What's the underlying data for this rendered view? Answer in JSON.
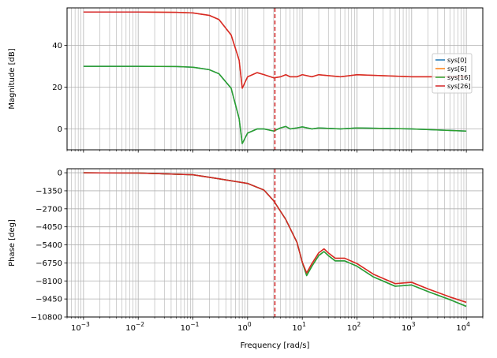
{
  "chart_data": [
    {
      "type": "line",
      "panel": "magnitude",
      "title": "",
      "xlabel": "",
      "ylabel": "Magnitude [dB]",
      "xscale": "log",
      "xlim": [
        0.0005,
        20000
      ],
      "ylim": [
        -10,
        58
      ],
      "yticks": [
        0,
        20,
        40
      ],
      "grid": true,
      "legend_placement": "right",
      "vline_x": 3.16,
      "series": [
        {
          "name": "sys[0]",
          "color": "#1f77b4",
          "x": [
            0.001,
            0.01,
            0.05,
            0.1,
            0.2,
            0.3,
            0.5,
            0.7,
            0.8,
            1.0,
            1.5,
            2.0,
            3.0,
            4.0,
            5.0,
            6.0,
            8.0,
            10.0,
            15.0,
            20.0,
            50.0,
            100.0,
            1000.0,
            10000.0
          ],
          "values": [
            30,
            30,
            29.9,
            29.6,
            28.4,
            26.4,
            19.5,
            5.0,
            -7.0,
            -2.0,
            0.0,
            0.0,
            -1.0,
            0.5,
            1.2,
            0.0,
            0.5,
            1.0,
            0.0,
            0.5,
            0.0,
            0.5,
            0.0,
            -1.0
          ]
        },
        {
          "name": "sys[6]",
          "color": "#ff7f0e",
          "x": [
            0.001,
            0.01,
            0.05,
            0.1,
            0.2,
            0.3,
            0.5,
            0.7,
            0.8,
            1.0,
            1.5,
            2.0,
            3.0,
            4.0,
            5.0,
            6.0,
            8.0,
            10.0,
            15.0,
            20.0,
            50.0,
            100.0,
            1000.0,
            10000.0
          ],
          "values": [
            56,
            56,
            55.9,
            55.6,
            54.4,
            52.4,
            45.0,
            33.0,
            19.5,
            25.0,
            27.0,
            26.0,
            24.5,
            25.0,
            26.0,
            25.0,
            25.0,
            26.0,
            25.0,
            26.0,
            25.0,
            26.0,
            25.0,
            25.0
          ]
        },
        {
          "name": "sys[16]",
          "color": "#2ca02c",
          "x": [
            0.001,
            0.01,
            0.05,
            0.1,
            0.2,
            0.3,
            0.5,
            0.7,
            0.8,
            1.0,
            1.5,
            2.0,
            3.0,
            4.0,
            5.0,
            6.0,
            8.0,
            10.0,
            15.0,
            20.0,
            50.0,
            100.0,
            1000.0,
            10000.0
          ],
          "values": [
            30,
            30,
            29.9,
            29.6,
            28.4,
            26.4,
            19.5,
            5.0,
            -7.0,
            -2.0,
            0.0,
            0.0,
            -1.0,
            0.5,
            1.2,
            0.0,
            0.5,
            1.0,
            0.0,
            0.5,
            0.0,
            0.5,
            0.0,
            -1.0
          ]
        },
        {
          "name": "sys[26]",
          "color": "#d62728",
          "x": [
            0.001,
            0.01,
            0.05,
            0.1,
            0.2,
            0.3,
            0.5,
            0.7,
            0.8,
            1.0,
            1.5,
            2.0,
            3.0,
            4.0,
            5.0,
            6.0,
            8.0,
            10.0,
            15.0,
            20.0,
            50.0,
            100.0,
            1000.0,
            10000.0
          ],
          "values": [
            56,
            56,
            55.9,
            55.6,
            54.4,
            52.4,
            45.0,
            33.0,
            19.5,
            25.0,
            27.0,
            26.0,
            24.5,
            25.0,
            26.0,
            25.0,
            25.0,
            26.0,
            25.0,
            26.0,
            25.0,
            26.0,
            25.0,
            25.0
          ]
        }
      ]
    },
    {
      "type": "line",
      "panel": "phase",
      "title": "",
      "xlabel": "Frequency [rad/s]",
      "ylabel": "Phase [deg]",
      "xscale": "log",
      "xlim": [
        0.0005,
        20000
      ],
      "ylim": [
        -10800,
        300
      ],
      "xticks": [
        {
          "value": 0.001,
          "base": "10",
          "exp": "−3"
        },
        {
          "value": 0.01,
          "base": "10",
          "exp": "−2"
        },
        {
          "value": 0.1,
          "base": "10",
          "exp": "−1"
        },
        {
          "value": 1,
          "base": "10",
          "exp": "0"
        },
        {
          "value": 10,
          "base": "10",
          "exp": "1"
        },
        {
          "value": 100,
          "base": "10",
          "exp": "2"
        },
        {
          "value": 1000,
          "base": "10",
          "exp": "3"
        },
        {
          "value": 10000,
          "base": "10",
          "exp": "4"
        }
      ],
      "yticks": [
        0,
        -1350,
        -2700,
        -4050,
        -5400,
        -6750,
        -8100,
        -9450,
        -10800
      ],
      "ytick_labels": [
        "0",
        "−1350",
        "−2700",
        "−4050",
        "−5400",
        "−6750",
        "−8100",
        "−9450",
        "−10800"
      ],
      "grid": true,
      "vline_x": 3.16,
      "series": [
        {
          "name": "sys[0]",
          "color": "#1f77b4",
          "x": [
            0.001,
            0.01,
            0.1,
            0.3,
            1.0,
            2.0,
            3.0,
            5.0,
            8.0,
            10.0,
            12.0,
            15.0,
            20.0,
            25.0,
            30.0,
            40.0,
            60.0,
            100.0,
            200.0,
            500.0,
            1000.0,
            2000.0,
            5000.0,
            10000.0
          ],
          "values": [
            0,
            -20,
            -150,
            -450,
            -800,
            -1300,
            -2100,
            -3500,
            -5200,
            -6700,
            -7700,
            -7000,
            -6200,
            -5900,
            -6200,
            -6600,
            -6600,
            -7000,
            -7800,
            -8500,
            -8400,
            -8900,
            -9500,
            -10000
          ]
        },
        {
          "name": "sys[6]",
          "color": "#ff7f0e",
          "x": [
            0.001,
            0.01,
            0.1,
            0.3,
            1.0,
            2.0,
            3.0,
            5.0,
            8.0,
            10.0,
            12.0,
            15.0,
            20.0,
            25.0,
            30.0,
            40.0,
            60.0,
            100.0,
            200.0,
            500.0,
            1000.0,
            2000.0,
            5000.0,
            10000.0
          ],
          "values": [
            0,
            -20,
            -150,
            -450,
            -800,
            -1300,
            -2100,
            -3500,
            -5200,
            -6700,
            -7500,
            -6800,
            -6000,
            -5700,
            -6000,
            -6400,
            -6400,
            -6800,
            -7600,
            -8300,
            -8200,
            -8700,
            -9300,
            -9700
          ]
        },
        {
          "name": "sys[16]",
          "color": "#2ca02c",
          "x": [
            0.001,
            0.01,
            0.1,
            0.3,
            1.0,
            2.0,
            3.0,
            5.0,
            8.0,
            10.0,
            12.0,
            15.0,
            20.0,
            25.0,
            30.0,
            40.0,
            60.0,
            100.0,
            200.0,
            500.0,
            1000.0,
            2000.0,
            5000.0,
            10000.0
          ],
          "values": [
            0,
            -20,
            -150,
            -450,
            -800,
            -1300,
            -2100,
            -3500,
            -5200,
            -6700,
            -7700,
            -7000,
            -6200,
            -5900,
            -6200,
            -6600,
            -6600,
            -7000,
            -7800,
            -8500,
            -8400,
            -8900,
            -9500,
            -10000
          ]
        },
        {
          "name": "sys[26]",
          "color": "#d62728",
          "x": [
            0.001,
            0.01,
            0.1,
            0.3,
            1.0,
            2.0,
            3.0,
            5.0,
            8.0,
            10.0,
            12.0,
            15.0,
            20.0,
            25.0,
            30.0,
            40.0,
            60.0,
            100.0,
            200.0,
            500.0,
            1000.0,
            2000.0,
            5000.0,
            10000.0
          ],
          "values": [
            0,
            -20,
            -150,
            -450,
            -800,
            -1300,
            -2100,
            -3500,
            -5200,
            -6700,
            -7500,
            -6800,
            -6000,
            -5700,
            -6000,
            -6400,
            -6400,
            -6800,
            -7600,
            -8300,
            -8200,
            -8700,
            -9300,
            -9700
          ]
        }
      ]
    }
  ],
  "colors": {
    "grid": "#b0b0b0",
    "vline": "#d62728",
    "axes": "#000000"
  }
}
